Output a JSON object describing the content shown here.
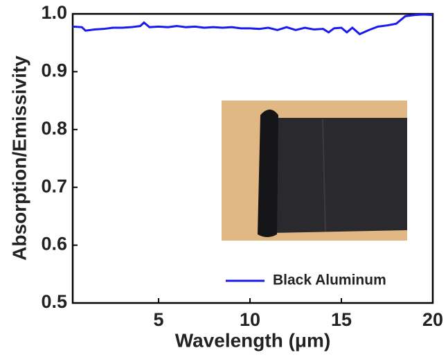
{
  "chart_data": {
    "type": "line",
    "x_label": "Wavelength (μm)",
    "y_label": "Absorption/Emissivity",
    "x": [
      0.3,
      0.8,
      1.0,
      1.5,
      2,
      2.5,
      3,
      3.5,
      4,
      4.2,
      4.5,
      5,
      5.5,
      6,
      6.5,
      7,
      7.5,
      8,
      8.5,
      9,
      9.5,
      10,
      10.5,
      11,
      11.5,
      12,
      12.5,
      13,
      13.5,
      14,
      14.3,
      14.6,
      15,
      15.3,
      15.6,
      16,
      16.5,
      17,
      17.5,
      18,
      18.5,
      19,
      19.5,
      20
    ],
    "series": [
      {
        "name": "Black Aluminum",
        "color": "#1a1aee",
        "values": [
          0.978,
          0.977,
          0.971,
          0.973,
          0.974,
          0.976,
          0.976,
          0.977,
          0.979,
          0.985,
          0.977,
          0.978,
          0.977,
          0.979,
          0.977,
          0.978,
          0.976,
          0.977,
          0.976,
          0.977,
          0.975,
          0.975,
          0.974,
          0.976,
          0.972,
          0.977,
          0.972,
          0.976,
          0.973,
          0.974,
          0.968,
          0.975,
          0.976,
          0.968,
          0.976,
          0.965,
          0.972,
          0.978,
          0.98,
          0.983,
          0.996,
          0.998,
          0.999,
          0.998
        ]
      }
    ],
    "xlim": [
      0.3,
      20
    ],
    "xticks": [
      5,
      10,
      15,
      20
    ],
    "ylim": [
      0.5,
      1.0
    ],
    "yticks": [
      0.5,
      0.6,
      0.7,
      0.8,
      0.9,
      {
        "value": 1.0,
        "label": "1.0"
      }
    ],
    "legend": "lower right"
  }
}
